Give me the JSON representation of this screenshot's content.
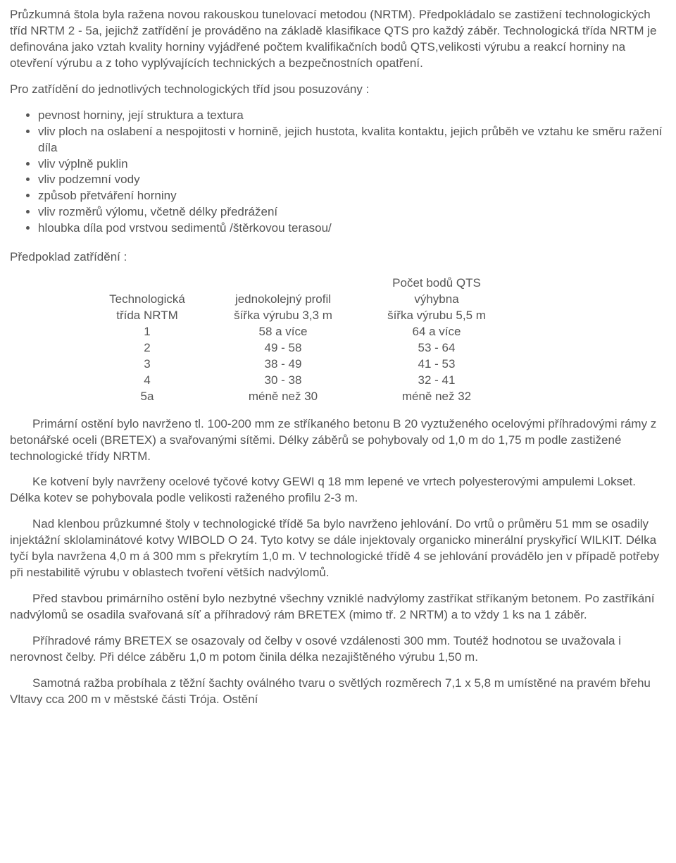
{
  "text_color": "#555555",
  "background_color": "#ffffff",
  "font_family": "Verdana",
  "font_size_pt": 12,
  "paragraphs": {
    "p1": "Průzkumná štola byla ražena novou rakouskou tunelovací metodou (NRTM). Předpokládalo se zastižení technologických tříd NRTM 2 - 5a, jejichž zatřídění je prováděno na základě klasifikace QTS pro každý záběr. Technologická třída NRTM je definována jako vztah kvality horniny vyjádřené počtem kvalifikačních bodů QTS,velikosti výrubu a reakcí horniny na otevření výrubu a z toho vyplývajících technických a bezpečnostních opatření.",
    "p2": "Pro zatřídění do jednotlivých technologických tříd jsou posuzovány :",
    "p3": "Předpoklad zatřídění :",
    "p4": "Primární ostění bylo navrženo tl. 100-200 mm ze stříkaného betonu B 20 vyztuženého ocelovými příhradovými rámy z betonářské oceli (BRETEX) a svařovanými sítěmi. Délky záběrů se pohybovaly od 1,0 m do 1,75 m podle zastižené technologické třídy NRTM.",
    "p5": "Ke kotvení byly navrženy ocelové tyčové kotvy GEWI q 18 mm lepené ve vrtech polyesterovými ampulemi Lokset. Délka kotev se pohybovala podle velikosti raženého profilu 2-3 m.",
    "p6": "Nad klenbou průzkumné štoly v technologické třídě 5a bylo navrženo jehlování. Do vrtů o průměru 51 mm se osadily injektážní sklolaminátové kotvy WIBOLD O 24. Tyto kotvy se dále injektovaly organicko minerální pryskyřicí WILKIT. Délka tyčí byla navržena 4,0 m á 300 mm s překrytím 1,0 m. V technologické třídě 4 se jehlování provádělo jen v případě potřeby při nestabilitě výrubu v oblastech tvoření větších nadvýlomů.",
    "p7": "Před stavbou primárního ostění bylo nezbytné všechny vzniklé nadvýlomy zastříkat stříkaným betonem. Po zastříkání nadvýlomů se osadila svařovaná síť a příhradový rám BRETEX (mimo tř. 2 NRTM) a to vždy 1 ks na 1 záběr.",
    "p8": "Příhradové rámy BRETEX se osazovaly od čelby v osové vzdálenosti 300 mm. Toutéž hodnotou se uvažovala i nerovnost čelby. Při délce záběru 1,0 m potom činila délka nezajištěného výrubu 1,50 m.",
    "p9": "Samotná ražba probíhala z těžní šachty oválného tvaru o světlých rozměrech 7,1 x 5,8 m umístěné na pravém břehu Vltavy cca 200 m v městské části Trója. Ostění"
  },
  "list": {
    "items": [
      "pevnost horniny, její struktura a textura",
      "vliv ploch na oslabení a nespojitosti v hornině, jejich hustota, kvalita kontaktu, jejich průběh ve vztahu ke směru ražení díla",
      "vliv výplně puklin",
      "vliv podzemní vody",
      "způsob přetváření horniny",
      "vliv rozměrů výlomu, včetně délky předrážení",
      "hloubka díla pod vrstvou sedimentů /štěrkovou terasou/"
    ]
  },
  "table": {
    "type": "table",
    "qts_title": "Počet bodů QTS",
    "header1": {
      "c1_l1": "Technologická",
      "c1_l2": "třída NRTM",
      "c2_l1": "jednokolejný profil",
      "c2_l2": "šířka výrubu 3,3 m",
      "c3_l1": "výhybna",
      "c3_l2": "šířka výrubu 5,5 m"
    },
    "rows": [
      {
        "c1": "1",
        "c2": "58 a více",
        "c3": "64 a více"
      },
      {
        "c1": "2",
        "c2": "49 - 58",
        "c3": "53 - 64"
      },
      {
        "c1": "3",
        "c2": "38 - 49",
        "c3": "41 - 53"
      },
      {
        "c1": "4",
        "c2": "30 - 38",
        "c3": "32 - 41"
      },
      {
        "c1": "5a",
        "c2": "méně než 30",
        "c3": "méně než 32"
      }
    ],
    "col_align": [
      "center",
      "center",
      "center"
    ],
    "cell_color": "#555555"
  }
}
